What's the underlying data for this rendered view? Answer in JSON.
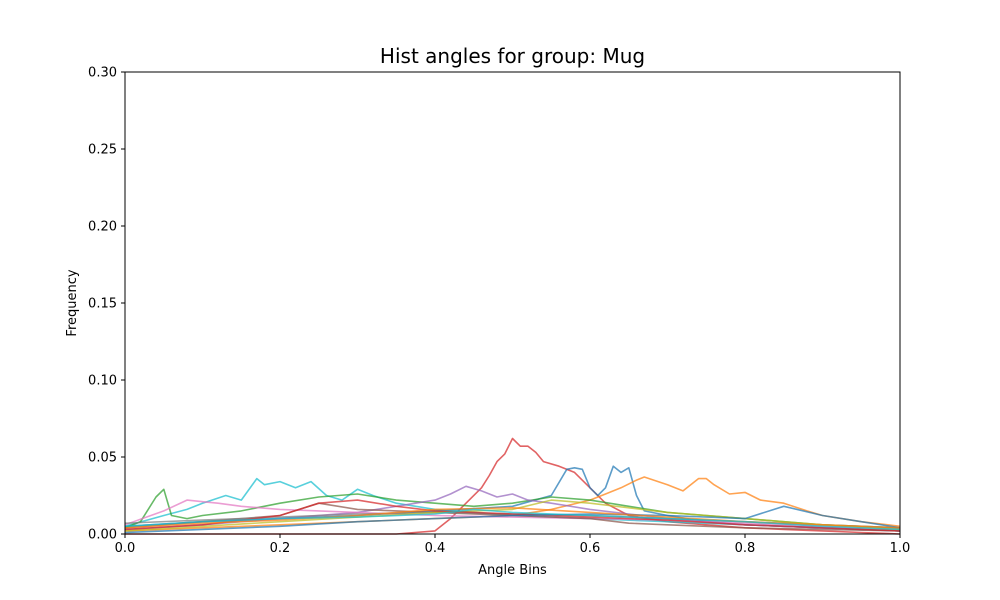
{
  "chart_data": {
    "type": "line",
    "title": "Hist angles for group: Mug",
    "xlabel": "Angle Bins",
    "ylabel": "Frequency",
    "xlim": [
      0.0,
      1.0
    ],
    "ylim": [
      0.0,
      0.3
    ],
    "xticks": [
      "0.0",
      "0.2",
      "0.4",
      "0.6",
      "0.8",
      "1.0"
    ],
    "yticks": [
      "0.00",
      "0.05",
      "0.10",
      "0.15",
      "0.20",
      "0.25",
      "0.30"
    ],
    "grid": false,
    "legend": "none",
    "colors": [
      "#d62728",
      "#1f77b4",
      "#ff7f0e",
      "#17becf",
      "#2ca02c",
      "#9467bd",
      "#e377c2",
      "#8c564b",
      "#7f7f7f",
      "#bcbd22"
    ],
    "series": [
      {
        "x": [
          0.0,
          0.05,
          0.1,
          0.15,
          0.2,
          0.25,
          0.3,
          0.35,
          0.4,
          0.42,
          0.44,
          0.46,
          0.47,
          0.48,
          0.49,
          0.5,
          0.51,
          0.52,
          0.53,
          0.54,
          0.56,
          0.58,
          0.6,
          0.62,
          0.65,
          0.7,
          0.75,
          0.8,
          0.85,
          0.9,
          0.95,
          1.0
        ],
        "y": [
          0.0,
          0.0,
          0.0,
          0.0,
          0.0,
          0.0,
          0.0,
          0.0,
          0.002,
          0.01,
          0.02,
          0.03,
          0.038,
          0.047,
          0.052,
          0.062,
          0.057,
          0.057,
          0.053,
          0.047,
          0.044,
          0.04,
          0.03,
          0.02,
          0.012,
          0.008,
          0.006,
          0.004,
          0.003,
          0.002,
          0.001,
          0.0
        ]
      },
      {
        "x": [
          0.0,
          0.1,
          0.2,
          0.3,
          0.4,
          0.5,
          0.55,
          0.57,
          0.58,
          0.59,
          0.6,
          0.61,
          0.62,
          0.63,
          0.64,
          0.65,
          0.66,
          0.67,
          0.7,
          0.75,
          0.8,
          0.85,
          0.9,
          0.95,
          1.0
        ],
        "y": [
          0.005,
          0.008,
          0.01,
          0.012,
          0.015,
          0.018,
          0.025,
          0.042,
          0.043,
          0.042,
          0.03,
          0.025,
          0.03,
          0.044,
          0.04,
          0.043,
          0.025,
          0.015,
          0.012,
          0.008,
          0.006,
          0.005,
          0.004,
          0.003,
          0.002
        ]
      },
      {
        "x": [
          0.0,
          0.1,
          0.2,
          0.3,
          0.4,
          0.5,
          0.55,
          0.6,
          0.62,
          0.64,
          0.66,
          0.67,
          0.7,
          0.72,
          0.74,
          0.75,
          0.76,
          0.78,
          0.8,
          0.82,
          0.85,
          0.88,
          0.9,
          0.95,
          1.0
        ],
        "y": [
          0.002,
          0.004,
          0.006,
          0.008,
          0.01,
          0.012,
          0.016,
          0.022,
          0.026,
          0.03,
          0.035,
          0.037,
          0.032,
          0.028,
          0.036,
          0.036,
          0.032,
          0.026,
          0.027,
          0.022,
          0.02,
          0.015,
          0.012,
          0.008,
          0.005
        ]
      },
      {
        "x": [
          0.0,
          0.05,
          0.08,
          0.1,
          0.13,
          0.15,
          0.17,
          0.18,
          0.2,
          0.22,
          0.24,
          0.26,
          0.28,
          0.3,
          0.32,
          0.35,
          0.4,
          0.45,
          0.5,
          0.6,
          0.7,
          0.8,
          0.9,
          1.0
        ],
        "y": [
          0.005,
          0.012,
          0.016,
          0.02,
          0.025,
          0.022,
          0.036,
          0.032,
          0.034,
          0.03,
          0.034,
          0.025,
          0.022,
          0.029,
          0.025,
          0.02,
          0.016,
          0.014,
          0.012,
          0.01,
          0.008,
          0.006,
          0.004,
          0.002
        ]
      },
      {
        "x": [
          0.0,
          0.02,
          0.04,
          0.05,
          0.06,
          0.08,
          0.1,
          0.15,
          0.2,
          0.25,
          0.3,
          0.35,
          0.4,
          0.45,
          0.5,
          0.55,
          0.6,
          0.65,
          0.7,
          0.75,
          0.8,
          0.85,
          0.9,
          0.95,
          1.0
        ],
        "y": [
          0.004,
          0.008,
          0.024,
          0.029,
          0.012,
          0.01,
          0.012,
          0.015,
          0.02,
          0.024,
          0.026,
          0.022,
          0.02,
          0.018,
          0.02,
          0.024,
          0.022,
          0.018,
          0.014,
          0.012,
          0.01,
          0.008,
          0.006,
          0.005,
          0.004
        ]
      },
      {
        "x": [
          0.0,
          0.1,
          0.2,
          0.3,
          0.35,
          0.4,
          0.42,
          0.44,
          0.46,
          0.48,
          0.5,
          0.52,
          0.55,
          0.6,
          0.65,
          0.7,
          0.75,
          0.8,
          0.85,
          0.9,
          0.95,
          1.0
        ],
        "y": [
          0.003,
          0.006,
          0.01,
          0.014,
          0.018,
          0.022,
          0.026,
          0.031,
          0.028,
          0.024,
          0.026,
          0.022,
          0.02,
          0.016,
          0.013,
          0.01,
          0.008,
          0.006,
          0.005,
          0.004,
          0.003,
          0.002
        ]
      },
      {
        "x": [
          0.0,
          0.05,
          0.08,
          0.1,
          0.12,
          0.15,
          0.2,
          0.25,
          0.3,
          0.4,
          0.5,
          0.6,
          0.7,
          0.8,
          0.9,
          1.0
        ],
        "y": [
          0.006,
          0.015,
          0.022,
          0.021,
          0.02,
          0.018,
          0.016,
          0.015,
          0.014,
          0.012,
          0.011,
          0.01,
          0.009,
          0.007,
          0.005,
          0.003
        ]
      },
      {
        "x": [
          0.0,
          0.1,
          0.2,
          0.25,
          0.3,
          0.4,
          0.5,
          0.6,
          0.65,
          0.7,
          0.8,
          0.9,
          1.0
        ],
        "y": [
          0.004,
          0.008,
          0.012,
          0.02,
          0.016,
          0.014,
          0.012,
          0.01,
          0.007,
          0.006,
          0.004,
          0.003,
          0.002
        ]
      },
      {
        "x": [
          0.0,
          0.1,
          0.2,
          0.3,
          0.4,
          0.5,
          0.6,
          0.7,
          0.8,
          0.9,
          1.0
        ],
        "y": [
          0.007,
          0.009,
          0.011,
          0.013,
          0.014,
          0.013,
          0.012,
          0.01,
          0.008,
          0.006,
          0.004
        ]
      },
      {
        "x": [
          0.0,
          0.1,
          0.2,
          0.3,
          0.4,
          0.5,
          0.55,
          0.6,
          0.7,
          0.8,
          0.9,
          1.0
        ],
        "y": [
          0.002,
          0.005,
          0.008,
          0.011,
          0.014,
          0.016,
          0.022,
          0.02,
          0.014,
          0.01,
          0.006,
          0.003
        ]
      },
      {
        "x": [
          0.0,
          0.1,
          0.2,
          0.25,
          0.3,
          0.35,
          0.4,
          0.5,
          0.6,
          0.7,
          0.8,
          0.9,
          1.0
        ],
        "y": [
          0.003,
          0.006,
          0.012,
          0.02,
          0.022,
          0.018,
          0.015,
          0.013,
          0.011,
          0.009,
          0.006,
          0.004,
          0.002
        ]
      },
      {
        "x": [
          0.0,
          0.1,
          0.2,
          0.3,
          0.4,
          0.5,
          0.6,
          0.7,
          0.8,
          0.85,
          0.9,
          0.95,
          1.0
        ],
        "y": [
          0.001,
          0.003,
          0.005,
          0.008,
          0.01,
          0.012,
          0.013,
          0.012,
          0.01,
          0.018,
          0.012,
          0.008,
          0.004
        ]
      },
      {
        "x": [
          0.0,
          0.1,
          0.2,
          0.3,
          0.4,
          0.5,
          0.6,
          0.7,
          0.8,
          0.9,
          1.0
        ],
        "y": [
          0.004,
          0.007,
          0.009,
          0.012,
          0.016,
          0.017,
          0.014,
          0.011,
          0.008,
          0.006,
          0.004
        ]
      },
      {
        "x": [
          0.0,
          0.1,
          0.2,
          0.3,
          0.4,
          0.45,
          0.5,
          0.6,
          0.7,
          0.8,
          0.9,
          1.0
        ],
        "y": [
          0.005,
          0.008,
          0.01,
          0.011,
          0.013,
          0.016,
          0.014,
          0.012,
          0.01,
          0.008,
          0.005,
          0.003
        ]
      }
    ]
  }
}
